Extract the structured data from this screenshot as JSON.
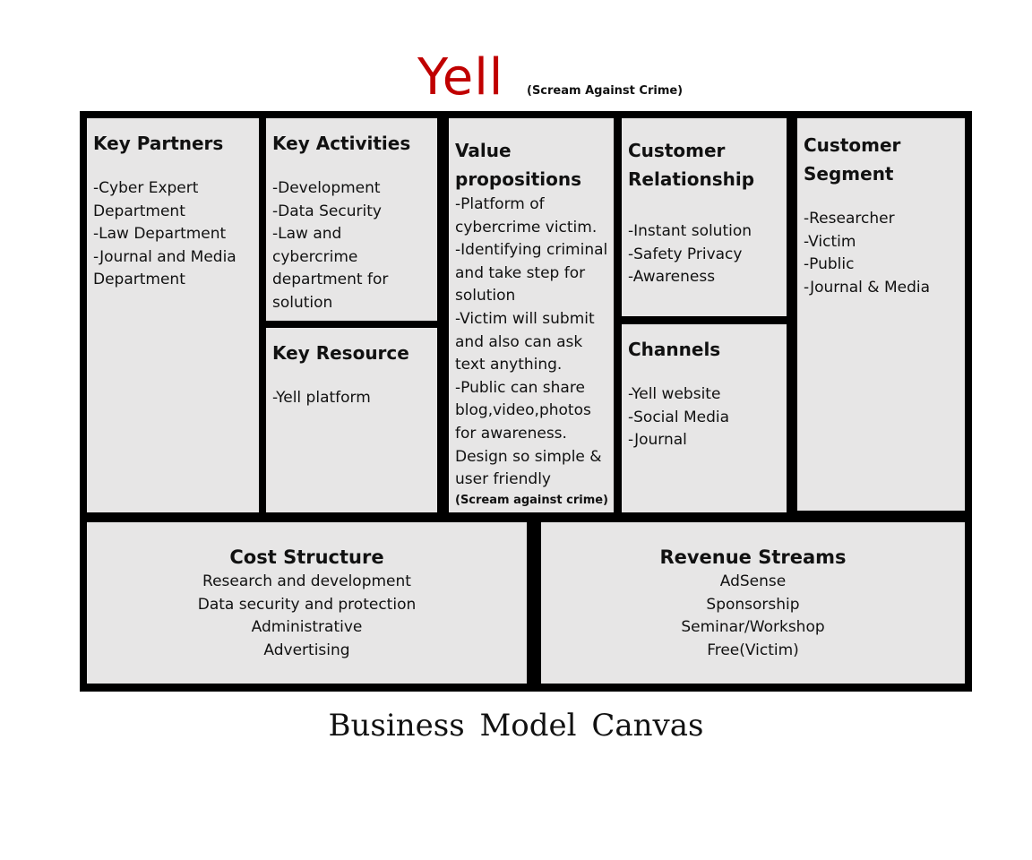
{
  "header": {
    "brand": "Yell",
    "tagline": "(Scream Against Crime)"
  },
  "key_partners": {
    "title": "Key Partners",
    "items": [
      "-Cyber Expert Department",
      "-Law Department",
      "-Journal and Media Department"
    ]
  },
  "key_activities": {
    "title": "Key Activities",
    "items": [
      "-Development",
      "-Data Security",
      "-Law and cybercrime department for solution"
    ]
  },
  "key_resource": {
    "title": "Key Resource",
    "items": [
      "-Yell platform"
    ]
  },
  "value_propositions": {
    "title": "Value propositions",
    "items": [
      "-Platform of cybercrime victim.",
      "-Identifying criminal and take step for solution",
      "-Victim will submit and also can ask text anything.",
      "-Public can share blog,video,photos for awareness.",
      "Design so simple & user friendly"
    ],
    "note": "(Scream against crime)"
  },
  "customer_relationship": {
    "title": "Customer Relationship",
    "items": [
      "-Instant solution",
      "-Safety Privacy",
      "-Awareness"
    ]
  },
  "channels": {
    "title": "Channels",
    "items": [
      "-Yell website",
      "-Social Media",
      "-Journal"
    ]
  },
  "customer_segment": {
    "title": "Customer Segment",
    "items": [
      "-Researcher",
      "-Victim",
      "-Public",
      "-Journal & Media"
    ]
  },
  "cost_structure": {
    "title": "Cost Structure",
    "items": [
      "Research and development",
      "Data security and protection",
      "Administrative",
      "Advertising"
    ]
  },
  "revenue_streams": {
    "title": "Revenue Streams",
    "items": [
      "AdSense",
      "Sponsorship",
      "Seminar/Workshop",
      "Free(Victim)"
    ]
  },
  "footer": {
    "caption": "Business  Model  Canvas"
  }
}
